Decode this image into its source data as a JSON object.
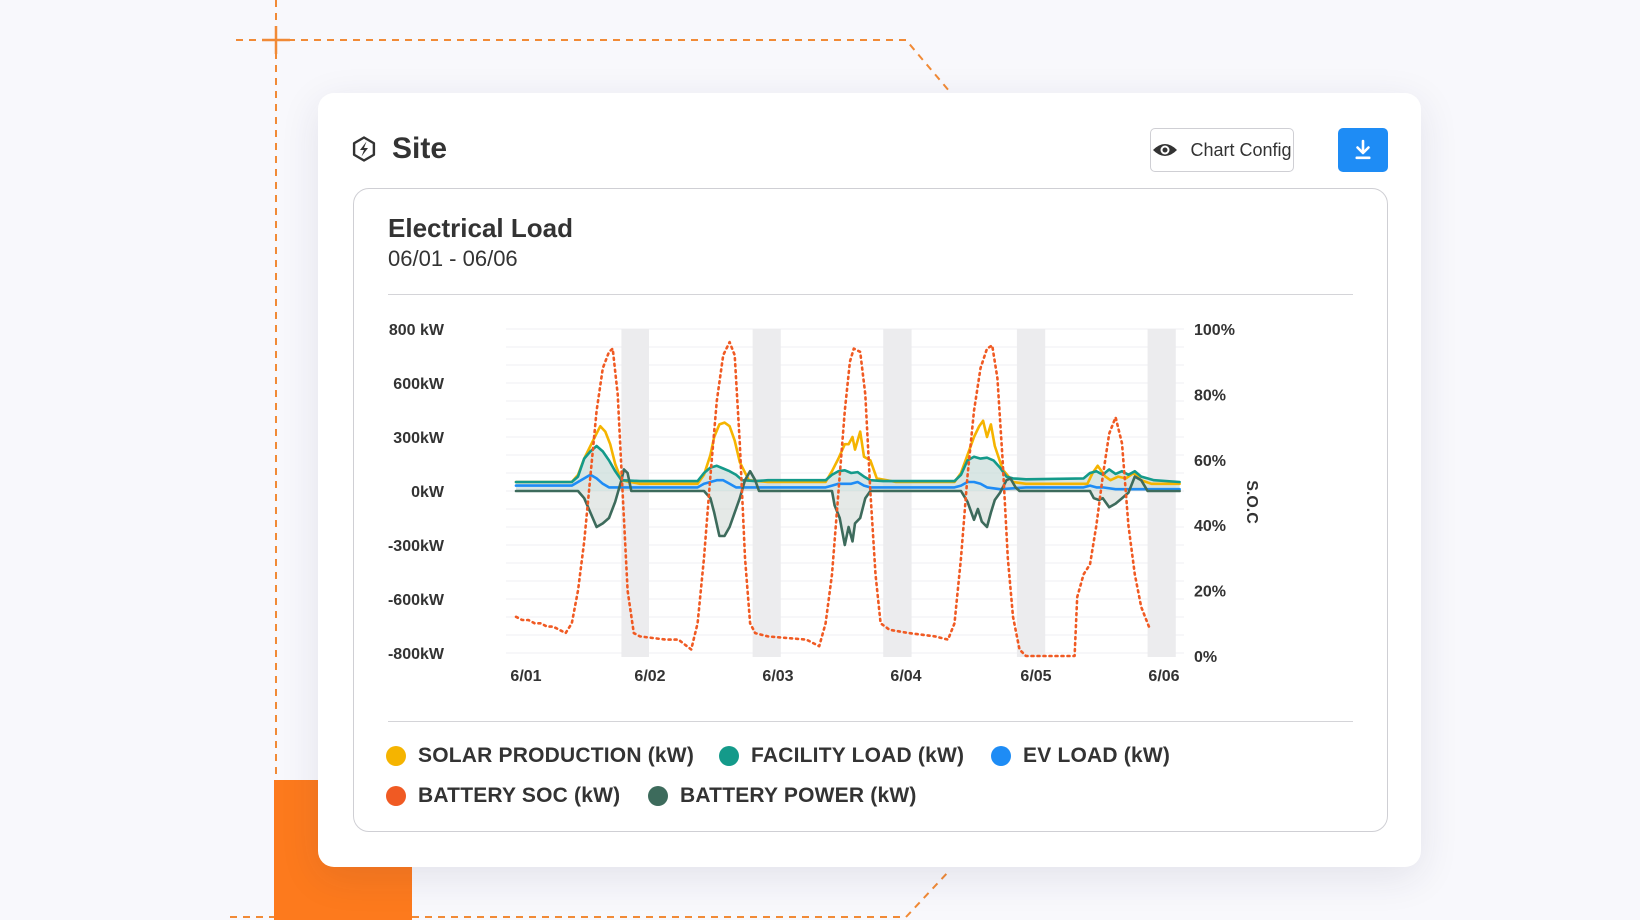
{
  "header": {
    "title": "Site",
    "icon": "bolt-icon",
    "chart_config_label": "Chart Config",
    "chart_config_icon": "eye-icon",
    "download_icon": "download-icon",
    "accent_color": "#1e8cf5"
  },
  "chart_data": {
    "type": "line",
    "title": "Electrical Load",
    "subtitle": "06/01 - 06/06",
    "x_ticks": [
      "6/01",
      "6/02",
      "6/03",
      "6/04",
      "6/05",
      "6/06"
    ],
    "x_range": [
      0,
      5.3
    ],
    "y_left": {
      "ticks": [
        {
          "value": 800,
          "label": "800 kW"
        },
        {
          "value": 600,
          "label": "600kW"
        },
        {
          "value": 300,
          "label": "300kW"
        },
        {
          "value": 0,
          "label": "0kW"
        },
        {
          "value": -300,
          "label": "-300kW"
        },
        {
          "value": -600,
          "label": "-600kW"
        },
        {
          "value": -800,
          "label": "-800kW"
        }
      ]
    },
    "y_right": {
      "label": "S.O.C",
      "range": [
        0,
        100
      ],
      "ticks": [
        {
          "value": 100,
          "label": "100%"
        },
        {
          "value": 80,
          "label": "80%"
        },
        {
          "value": 60,
          "label": "60%"
        },
        {
          "value": 40,
          "label": "40%"
        },
        {
          "value": 20,
          "label": "20%"
        },
        {
          "value": 0,
          "label": "0%"
        }
      ]
    },
    "shaded_bands": [
      [
        0.85,
        1.07
      ],
      [
        1.88,
        2.1
      ],
      [
        2.9,
        3.12
      ],
      [
        3.93,
        4.15
      ],
      [
        4.95,
        5.17
      ]
    ],
    "series": [
      {
        "name": "SOLAR PRODUCTION (kW)",
        "color": "#f5b400",
        "axis": "left",
        "style": "solid",
        "points": [
          [
            0,
            50
          ],
          [
            0.45,
            50
          ],
          [
            0.5,
            90
          ],
          [
            0.55,
            180
          ],
          [
            0.6,
            250
          ],
          [
            0.65,
            320
          ],
          [
            0.68,
            360
          ],
          [
            0.72,
            330
          ],
          [
            0.76,
            260
          ],
          [
            0.8,
            150
          ],
          [
            0.85,
            60
          ],
          [
            1.0,
            40
          ],
          [
            1.45,
            40
          ],
          [
            1.5,
            90
          ],
          [
            1.55,
            200
          ],
          [
            1.58,
            300
          ],
          [
            1.62,
            370
          ],
          [
            1.66,
            380
          ],
          [
            1.7,
            360
          ],
          [
            1.74,
            280
          ],
          [
            1.78,
            160
          ],
          [
            1.85,
            60
          ],
          [
            2.0,
            50
          ],
          [
            2.45,
            50
          ],
          [
            2.5,
            110
          ],
          [
            2.55,
            180
          ],
          [
            2.6,
            260
          ],
          [
            2.63,
            260
          ],
          [
            2.66,
            300
          ],
          [
            2.68,
            230
          ],
          [
            2.72,
            330
          ],
          [
            2.75,
            190
          ],
          [
            2.8,
            170
          ],
          [
            2.85,
            70
          ],
          [
            3.0,
            50
          ],
          [
            3.45,
            50
          ],
          [
            3.5,
            100
          ],
          [
            3.55,
            200
          ],
          [
            3.6,
            300
          ],
          [
            3.64,
            360
          ],
          [
            3.67,
            390
          ],
          [
            3.7,
            300
          ],
          [
            3.73,
            370
          ],
          [
            3.76,
            250
          ],
          [
            3.82,
            120
          ],
          [
            3.9,
            50
          ],
          [
            4.0,
            40
          ],
          [
            4.48,
            40
          ],
          [
            4.52,
            100
          ],
          [
            4.56,
            140
          ],
          [
            4.62,
            80
          ],
          [
            4.66,
            60
          ],
          [
            4.72,
            80
          ],
          [
            4.78,
            70
          ],
          [
            4.84,
            100
          ],
          [
            4.9,
            60
          ],
          [
            4.98,
            40
          ],
          [
            5.2,
            40
          ]
        ]
      },
      {
        "name": "FACILITY LOAD (kW)",
        "color": "#149a8a",
        "axis": "left",
        "style": "solid",
        "points": [
          [
            0,
            50
          ],
          [
            0.45,
            50
          ],
          [
            0.5,
            80
          ],
          [
            0.55,
            180
          ],
          [
            0.6,
            220
          ],
          [
            0.65,
            250
          ],
          [
            0.7,
            220
          ],
          [
            0.75,
            170
          ],
          [
            0.8,
            110
          ],
          [
            0.85,
            60
          ],
          [
            1.0,
            55
          ],
          [
            1.45,
            55
          ],
          [
            1.5,
            100
          ],
          [
            1.55,
            130
          ],
          [
            1.6,
            140
          ],
          [
            1.65,
            125
          ],
          [
            1.7,
            110
          ],
          [
            1.75,
            90
          ],
          [
            1.8,
            60
          ],
          [
            1.9,
            55
          ],
          [
            2.0,
            60
          ],
          [
            2.45,
            60
          ],
          [
            2.5,
            90
          ],
          [
            2.55,
            110
          ],
          [
            2.6,
            115
          ],
          [
            2.65,
            100
          ],
          [
            2.7,
            105
          ],
          [
            2.75,
            80
          ],
          [
            2.8,
            60
          ],
          [
            2.9,
            55
          ],
          [
            3.0,
            55
          ],
          [
            3.45,
            55
          ],
          [
            3.5,
            90
          ],
          [
            3.55,
            170
          ],
          [
            3.6,
            190
          ],
          [
            3.65,
            180
          ],
          [
            3.7,
            185
          ],
          [
            3.75,
            170
          ],
          [
            3.8,
            130
          ],
          [
            3.85,
            80
          ],
          [
            3.9,
            70
          ],
          [
            4.0,
            65
          ],
          [
            4.45,
            70
          ],
          [
            4.5,
            100
          ],
          [
            4.55,
            110
          ],
          [
            4.6,
            90
          ],
          [
            4.65,
            120
          ],
          [
            4.7,
            95
          ],
          [
            4.75,
            110
          ],
          [
            4.8,
            90
          ],
          [
            4.85,
            110
          ],
          [
            4.9,
            80
          ],
          [
            4.95,
            70
          ],
          [
            5.0,
            60
          ],
          [
            5.2,
            50
          ]
        ]
      },
      {
        "name": "EV LOAD (kW)",
        "color": "#1e8cf5",
        "axis": "left",
        "style": "solid",
        "points": [
          [
            0,
            30
          ],
          [
            0.45,
            30
          ],
          [
            0.5,
            50
          ],
          [
            0.55,
            70
          ],
          [
            0.6,
            90
          ],
          [
            0.65,
            70
          ],
          [
            0.7,
            40
          ],
          [
            0.75,
            20
          ],
          [
            0.85,
            20
          ],
          [
            1.0,
            20
          ],
          [
            1.45,
            20
          ],
          [
            1.5,
            40
          ],
          [
            1.55,
            50
          ],
          [
            1.6,
            60
          ],
          [
            1.65,
            60
          ],
          [
            1.7,
            40
          ],
          [
            1.75,
            20
          ],
          [
            2.0,
            20
          ],
          [
            2.45,
            20
          ],
          [
            2.5,
            30
          ],
          [
            2.55,
            40
          ],
          [
            2.65,
            40
          ],
          [
            2.7,
            50
          ],
          [
            2.75,
            30
          ],
          [
            2.8,
            20
          ],
          [
            3.0,
            20
          ],
          [
            3.45,
            20
          ],
          [
            3.5,
            30
          ],
          [
            3.55,
            50
          ],
          [
            3.6,
            50
          ],
          [
            3.65,
            40
          ],
          [
            3.7,
            20
          ],
          [
            3.8,
            10
          ],
          [
            4.0,
            20
          ],
          [
            4.45,
            20
          ],
          [
            4.5,
            30
          ],
          [
            4.55,
            20
          ],
          [
            4.6,
            20
          ],
          [
            4.7,
            10
          ],
          [
            4.9,
            10
          ],
          [
            5.0,
            10
          ],
          [
            5.2,
            10
          ]
        ]
      },
      {
        "name": "BATTERY POWER (kW)",
        "color": "#3d6b5c",
        "axis": "left",
        "style": "solid",
        "points": [
          [
            0,
            0
          ],
          [
            0.5,
            0
          ],
          [
            0.55,
            -40
          ],
          [
            0.6,
            -120
          ],
          [
            0.65,
            -200
          ],
          [
            0.7,
            -180
          ],
          [
            0.75,
            -150
          ],
          [
            0.8,
            -60
          ],
          [
            0.85,
            60
          ],
          [
            0.87,
            120
          ],
          [
            0.9,
            100
          ],
          [
            0.93,
            0
          ],
          [
            1.5,
            0
          ],
          [
            1.55,
            -40
          ],
          [
            1.58,
            -120
          ],
          [
            1.62,
            -250
          ],
          [
            1.66,
            -250
          ],
          [
            1.7,
            -200
          ],
          [
            1.74,
            -120
          ],
          [
            1.78,
            -40
          ],
          [
            1.82,
            60
          ],
          [
            1.86,
            110
          ],
          [
            1.9,
            60
          ],
          [
            1.93,
            0
          ],
          [
            2.5,
            0
          ],
          [
            2.52,
            -80
          ],
          [
            2.56,
            -150
          ],
          [
            2.6,
            -300
          ],
          [
            2.63,
            -200
          ],
          [
            2.66,
            -280
          ],
          [
            2.68,
            -180
          ],
          [
            2.72,
            -150
          ],
          [
            2.76,
            -40
          ],
          [
            2.8,
            0
          ],
          [
            3.5,
            0
          ],
          [
            3.55,
            -60
          ],
          [
            3.6,
            -160
          ],
          [
            3.63,
            -100
          ],
          [
            3.66,
            -170
          ],
          [
            3.7,
            -200
          ],
          [
            3.73,
            -120
          ],
          [
            3.76,
            -50
          ],
          [
            3.8,
            -10
          ],
          [
            3.85,
            60
          ],
          [
            3.88,
            70
          ],
          [
            3.92,
            20
          ],
          [
            3.95,
            0
          ],
          [
            4.5,
            0
          ],
          [
            4.53,
            -40
          ],
          [
            4.57,
            -50
          ],
          [
            4.6,
            -40
          ],
          [
            4.65,
            -90
          ],
          [
            4.7,
            -70
          ],
          [
            4.75,
            -40
          ],
          [
            4.8,
            -10
          ],
          [
            4.85,
            80
          ],
          [
            4.9,
            60
          ],
          [
            4.95,
            0
          ],
          [
            5.2,
            0
          ]
        ]
      },
      {
        "name": "BATTERY SOC (kW)",
        "color": "#f05a23",
        "axis": "right",
        "style": "dotted",
        "points": [
          [
            0,
            12
          ],
          [
            0.05,
            11
          ],
          [
            0.1,
            11
          ],
          [
            0.15,
            10
          ],
          [
            0.2,
            10
          ],
          [
            0.25,
            9
          ],
          [
            0.3,
            9
          ],
          [
            0.35,
            8
          ],
          [
            0.4,
            7
          ],
          [
            0.45,
            10
          ],
          [
            0.5,
            20
          ],
          [
            0.55,
            35
          ],
          [
            0.6,
            55
          ],
          [
            0.65,
            75
          ],
          [
            0.7,
            88
          ],
          [
            0.75,
            93
          ],
          [
            0.78,
            94
          ],
          [
            0.82,
            80
          ],
          [
            0.86,
            50
          ],
          [
            0.9,
            20
          ],
          [
            0.95,
            7
          ],
          [
            1.0,
            6
          ],
          [
            1.2,
            5
          ],
          [
            1.3,
            5
          ],
          [
            1.4,
            2
          ],
          [
            1.45,
            10
          ],
          [
            1.5,
            30
          ],
          [
            1.55,
            55
          ],
          [
            1.6,
            78
          ],
          [
            1.65,
            92
          ],
          [
            1.7,
            96
          ],
          [
            1.74,
            92
          ],
          [
            1.78,
            65
          ],
          [
            1.82,
            30
          ],
          [
            1.86,
            10
          ],
          [
            1.9,
            7
          ],
          [
            2.0,
            6
          ],
          [
            2.3,
            5
          ],
          [
            2.4,
            3
          ],
          [
            2.45,
            10
          ],
          [
            2.5,
            25
          ],
          [
            2.55,
            50
          ],
          [
            2.6,
            75
          ],
          [
            2.64,
            90
          ],
          [
            2.67,
            94
          ],
          [
            2.72,
            93
          ],
          [
            2.76,
            80
          ],
          [
            2.8,
            50
          ],
          [
            2.84,
            25
          ],
          [
            2.88,
            10
          ],
          [
            2.95,
            8
          ],
          [
            3.1,
            7
          ],
          [
            3.3,
            6
          ],
          [
            3.4,
            5
          ],
          [
            3.45,
            10
          ],
          [
            3.5,
            30
          ],
          [
            3.55,
            55
          ],
          [
            3.6,
            75
          ],
          [
            3.65,
            88
          ],
          [
            3.7,
            94
          ],
          [
            3.74,
            95
          ],
          [
            3.78,
            85
          ],
          [
            3.82,
            60
          ],
          [
            3.86,
            30
          ],
          [
            3.9,
            12
          ],
          [
            3.95,
            2
          ],
          [
            4.0,
            0
          ],
          [
            4.1,
            0
          ],
          [
            4.3,
            0
          ],
          [
            4.38,
            0
          ],
          [
            4.4,
            18
          ],
          [
            4.45,
            25
          ],
          [
            4.5,
            28
          ],
          [
            4.55,
            40
          ],
          [
            4.6,
            55
          ],
          [
            4.65,
            68
          ],
          [
            4.7,
            73
          ],
          [
            4.75,
            65
          ],
          [
            4.8,
            40
          ],
          [
            4.85,
            25
          ],
          [
            4.9,
            15
          ],
          [
            4.95,
            10
          ],
          [
            4.97,
            8
          ]
        ]
      }
    ],
    "legend_position": "bottom",
    "grid": true
  }
}
